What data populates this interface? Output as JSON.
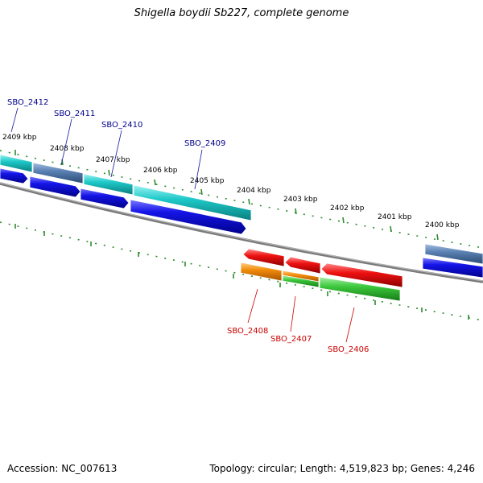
{
  "title": "Shigella boydii Sb227, complete genome",
  "footer": {
    "accession": "Accession: NC_007613",
    "summary": "Topology: circular; Length: 4,519,823 bp; Genes: 4,246"
  },
  "colors": {
    "backbone": "#808080",
    "ticks": "#2e8b2e",
    "forward_blue": "#1515e8",
    "forward_cyan": "#1ec8c8",
    "forward_steel": "#5a82b4",
    "reverse_red": "#ee1111",
    "reverse_orange": "#f28c0a",
    "reverse_green": "#3cc83c",
    "label_top": "#00008b",
    "label_bottom": "#cc0000"
  },
  "scale_labels": [
    "2409 kbp",
    "2408 kbp",
    "2407 kbp",
    "2406 kbp",
    "2405 kbp",
    "2404 kbp",
    "2403 kbp",
    "2402 kbp",
    "2401 kbp",
    "2400 kbp"
  ],
  "gene_labels_top": [
    "SBO_2412",
    "SBO_2411",
    "SBO_2410",
    "SBO_2409"
  ],
  "gene_labels_bottom": [
    "SBO_2408",
    "SBO_2407",
    "SBO_2406"
  ]
}
